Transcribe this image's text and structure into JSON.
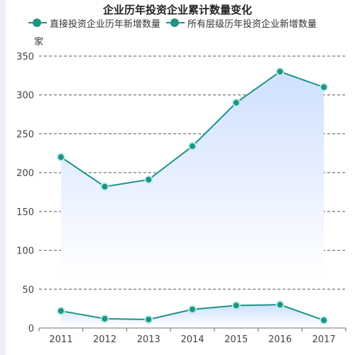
{
  "chart_data": {
    "type": "line",
    "title": "企业历年投资企业累计数量变化",
    "y_unit": "家",
    "categories": [
      "2011",
      "2012",
      "2013",
      "2014",
      "2015",
      "2016",
      "2017"
    ],
    "ylim": [
      0,
      350
    ],
    "yticks": [
      0,
      50,
      100,
      150,
      200,
      250,
      300,
      350
    ],
    "grid": true,
    "legend_position": "top",
    "series": [
      {
        "name": "直接投资企业历年新增数量",
        "values": [
          220,
          182,
          191,
          234,
          290,
          330,
          310
        ],
        "area": true
      },
      {
        "name": "所有层级历年投资企业新增数量",
        "values": [
          22,
          12,
          11,
          24,
          29,
          30,
          10
        ],
        "area": true
      }
    ],
    "colors": {
      "line": "#1f9484",
      "marker_fill": "#1f9484",
      "marker_halo": "#b9ece5",
      "area_top": "#cfe0ff",
      "area_bottom": "#ffffff",
      "grid": "#555555"
    }
  }
}
